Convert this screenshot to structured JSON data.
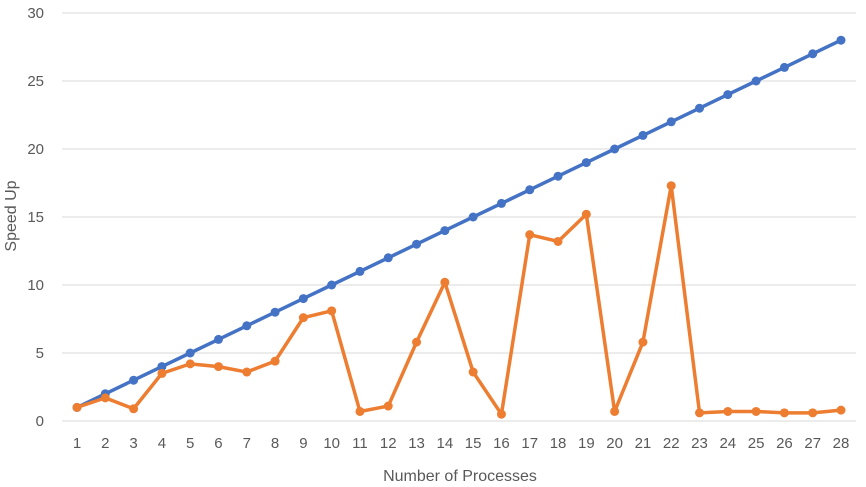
{
  "chart_data": {
    "type": "line",
    "xlabel": "Number of Processes",
    "ylabel": "Speed Up",
    "ylim": [
      0,
      30
    ],
    "yticks": [
      0,
      5,
      10,
      15,
      20,
      25,
      30
    ],
    "grid": true,
    "legend": "none",
    "x": [
      1,
      2,
      3,
      4,
      5,
      6,
      7,
      8,
      9,
      10,
      11,
      12,
      13,
      14,
      15,
      16,
      17,
      18,
      19,
      20,
      21,
      22,
      23,
      24,
      25,
      26,
      27,
      28
    ],
    "series": [
      {
        "color": "#4472c4",
        "values": [
          1,
          2,
          3,
          4,
          5,
          6,
          7,
          8,
          9,
          10,
          11,
          12,
          13,
          14,
          15,
          16,
          17,
          18,
          19,
          20,
          21,
          22,
          23,
          24,
          25,
          26,
          27,
          28
        ]
      },
      {
        "color": "#ed7d31",
        "values": [
          1.0,
          1.7,
          0.9,
          3.5,
          4.2,
          4.0,
          3.6,
          4.4,
          7.6,
          8.1,
          0.7,
          1.1,
          5.8,
          10.2,
          3.6,
          0.5,
          13.7,
          13.2,
          15.2,
          0.7,
          5.8,
          17.3,
          0.6,
          0.7,
          0.7,
          0.6,
          0.6,
          0.8
        ]
      }
    ]
  }
}
